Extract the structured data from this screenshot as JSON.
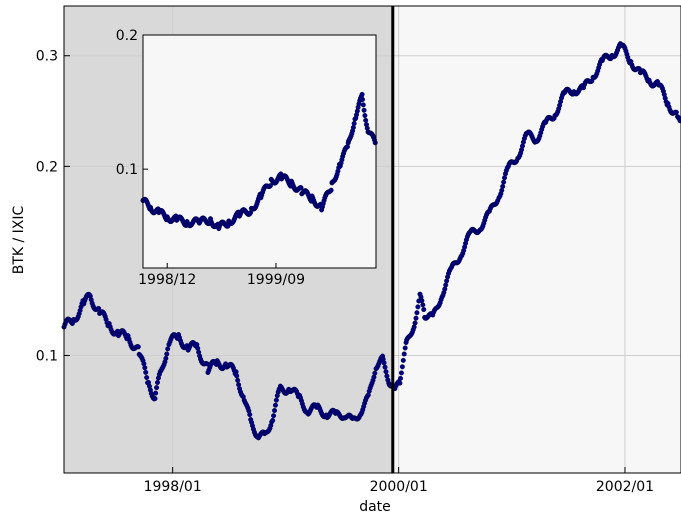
{
  "chart_data": [
    {
      "type": "scatter",
      "title": "",
      "xlabel": "date",
      "ylabel": "BTK / IXIC",
      "yscale": "log",
      "ylim": [
        0.065,
        0.36
      ],
      "xlim": [
        "1997-01-15",
        "2002-07-01"
      ],
      "grid": true,
      "marker_color": "#000080",
      "shaded_region": {
        "from": "1997-01-15",
        "to": "1999-12-13",
        "color": "#d9d9d9"
      },
      "vertical_line": {
        "x": "1999-12-13",
        "color": "#000000"
      },
      "x_ticks": [
        {
          "value": "1998-01-01",
          "label": "1998/01"
        },
        {
          "value": "2000-01-01",
          "label": "2000/01"
        },
        {
          "value": "2002-01-01",
          "label": "2002/01"
        }
      ],
      "y_ticks": [
        {
          "value": 0.1,
          "label": "0.1"
        },
        {
          "value": 0.2,
          "label": "0.2"
        },
        {
          "value": 0.3,
          "label": "0.3"
        }
      ],
      "series": [
        {
          "points": [
            [
              "1997-01-15",
              0.111
            ],
            [
              "1997-02-15",
              0.114
            ],
            [
              "1997-03-20",
              0.121
            ],
            [
              "1997-04-10",
              0.124
            ],
            [
              "1997-05-10",
              0.117
            ],
            [
              "1997-06-10",
              0.112
            ],
            [
              "1997-07-10",
              0.108
            ],
            [
              "1997-08-10",
              0.107
            ],
            [
              "1997-09-15",
              0.101
            ],
            [
              "1997-10-15",
              0.09
            ],
            [
              "1997-11-05",
              0.086
            ],
            [
              "1997-11-25",
              0.094
            ],
            [
              "1997-12-20",
              0.105
            ],
            [
              "1998-01-20",
              0.107
            ],
            [
              "1998-02-20",
              0.103
            ],
            [
              "1998-03-20",
              0.103
            ],
            [
              "1998-04-25",
              0.095
            ],
            [
              "1998-05-25",
              0.097
            ],
            [
              "1998-06-25",
              0.097
            ],
            [
              "1998-07-25",
              0.093
            ],
            [
              "1998-08-20",
              0.086
            ],
            [
              "1998-09-10",
              0.078
            ],
            [
              "1998-10-05",
              0.075
            ],
            [
              "1998-10-25",
              0.074
            ],
            [
              "1998-11-20",
              0.08
            ],
            [
              "1998-12-15",
              0.088
            ],
            [
              "1999-01-15",
              0.089
            ],
            [
              "1999-02-15",
              0.085
            ],
            [
              "1999-03-15",
              0.082
            ],
            [
              "1999-04-15",
              0.082
            ],
            [
              "1999-05-15",
              0.081
            ],
            [
              "1999-06-15",
              0.08
            ],
            [
              "1999-07-10",
              0.081
            ],
            [
              "1999-08-05",
              0.078
            ],
            [
              "1999-09-01",
              0.082
            ],
            [
              "1999-09-25",
              0.085
            ],
            [
              "1999-10-20",
              0.097
            ],
            [
              "1999-11-10",
              0.098
            ],
            [
              "1999-11-30",
              0.092
            ],
            [
              "1999-12-20",
              0.087
            ],
            [
              "2000-01-05",
              0.092
            ],
            [
              "2000-01-25",
              0.103
            ],
            [
              "2000-02-20",
              0.113
            ],
            [
              "2000-03-10",
              0.123
            ],
            [
              "2000-03-25",
              0.117
            ],
            [
              "2000-04-20",
              0.114
            ],
            [
              "2000-05-20",
              0.126
            ],
            [
              "2000-06-20",
              0.136
            ],
            [
              "2000-07-20",
              0.146
            ],
            [
              "2000-08-20",
              0.155
            ],
            [
              "2000-09-20",
              0.161
            ],
            [
              "2000-10-20",
              0.167
            ],
            [
              "2000-11-20",
              0.181
            ],
            [
              "2000-12-20",
              0.197
            ],
            [
              "2001-01-20",
              0.209
            ],
            [
              "2001-02-20",
              0.223
            ],
            [
              "2001-03-20",
              0.222
            ],
            [
              "2001-04-20",
              0.232
            ],
            [
              "2001-05-20",
              0.244
            ],
            [
              "2001-06-20",
              0.259
            ],
            [
              "2001-07-20",
              0.266
            ],
            [
              "2001-08-20",
              0.264
            ],
            [
              "2001-09-20",
              0.28
            ],
            [
              "2001-10-20",
              0.292
            ],
            [
              "2001-11-20",
              0.303
            ],
            [
              "2001-12-20",
              0.309
            ],
            [
              "2002-01-20",
              0.296
            ],
            [
              "2002-02-20",
              0.28
            ],
            [
              "2002-03-20",
              0.276
            ],
            [
              "2002-04-20",
              0.268
            ],
            [
              "2002-05-20",
              0.253
            ],
            [
              "2002-06-20",
              0.239
            ],
            [
              "2002-07-01",
              0.23
            ]
          ]
        }
      ]
    },
    {
      "type": "scatter",
      "title": "",
      "yscale": "log",
      "ylim": [
        0.06,
        0.2
      ],
      "xlim": [
        "1998-10-01",
        "2000-05-10"
      ],
      "marker_color": "#000080",
      "x_ticks": [
        {
          "value": "1998-12-01",
          "label": "1998/12"
        },
        {
          "value": "1999-09-01",
          "label": "1999/09"
        }
      ],
      "y_ticks": [
        {
          "value": 0.1,
          "label": "0.1"
        },
        {
          "value": 0.2,
          "label": "0.2"
        }
      ],
      "series": [
        {
          "points": [
            [
              "1998-10-01",
              0.085
            ],
            [
              "1998-10-20",
              0.082
            ],
            [
              "1998-11-10",
              0.08
            ],
            [
              "1998-12-01",
              0.078
            ],
            [
              "1998-12-25",
              0.077
            ],
            [
              "1999-01-20",
              0.076
            ],
            [
              "1999-02-20",
              0.076
            ],
            [
              "1999-03-20",
              0.077
            ],
            [
              "1999-04-10",
              0.074
            ],
            [
              "1999-05-05",
              0.076
            ],
            [
              "1999-06-01",
              0.079
            ],
            [
              "1999-07-01",
              0.081
            ],
            [
              "1999-07-25",
              0.087
            ],
            [
              "1999-08-20",
              0.094
            ],
            [
              "1999-09-15",
              0.096
            ],
            [
              "1999-10-10",
              0.093
            ],
            [
              "1999-11-05",
              0.089
            ],
            [
              "1999-12-01",
              0.086
            ],
            [
              "1999-12-25",
              0.082
            ],
            [
              "2000-01-20",
              0.092
            ],
            [
              "2000-02-10",
              0.103
            ],
            [
              "2000-03-01",
              0.113
            ],
            [
              "2000-03-20",
              0.132
            ],
            [
              "2000-04-05",
              0.145
            ],
            [
              "2000-04-20",
              0.123
            ],
            [
              "2000-05-10",
              0.113
            ]
          ]
        }
      ]
    }
  ]
}
